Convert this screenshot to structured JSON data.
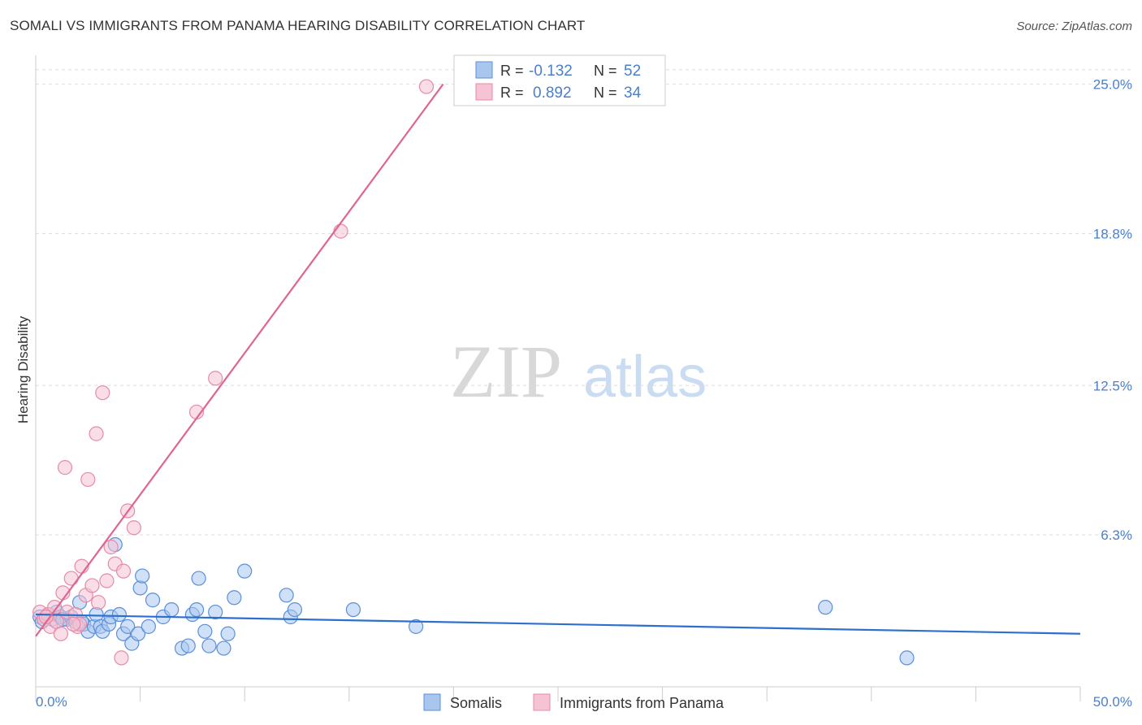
{
  "title": "SOMALI VS IMMIGRANTS FROM PANAMA HEARING DISABILITY CORRELATION CHART",
  "source": "Source: ZipAtlas.com",
  "watermark": {
    "zip": "ZIP",
    "atlas": "atlas"
  },
  "colors": {
    "somali": "#5b8fd9",
    "somali_fill": "#a9c6ef",
    "somali_line": "#2e6fce",
    "panama": "#e68aa8",
    "panama_fill": "#f6c3d4",
    "panama_line": "#e0658f",
    "axis_label": "#4a7fc9",
    "grid": "#dddddd"
  },
  "legend": {
    "rows": [
      {
        "r_label": "R = ",
        "r_value": "-0.132",
        "n_label": "N = ",
        "n_value": "52"
      },
      {
        "r_label": "R = ",
        "r_value": "0.892",
        "n_label": "N = ",
        "n_value": "34"
      }
    ]
  },
  "bottom_legend": [
    "Somalis",
    "Immigrants from Panama"
  ],
  "chart_data": {
    "type": "scatter",
    "title": "SOMALI VS IMMIGRANTS FROM PANAMA HEARING DISABILITY CORRELATION CHART",
    "xlabel": "",
    "ylabel": "Hearing Disability",
    "xlim": [
      0,
      50
    ],
    "ylim": [
      0,
      26.2
    ],
    "x_tick_labels": [
      "0.0%",
      "50.0%"
    ],
    "y_ticks": [
      6.3,
      12.5,
      18.8,
      25.0
    ],
    "y_tick_labels": [
      "6.3%",
      "12.5%",
      "18.8%",
      "25.0%"
    ],
    "grid": "horizontal dashed",
    "legend_position": "top-center",
    "series": [
      {
        "name": "Somalis",
        "r": -0.132,
        "n": 52,
        "trend": [
          [
            0,
            3.0
          ],
          [
            50,
            2.2
          ]
        ],
        "points": [
          [
            0.2,
            2.9
          ],
          [
            0.4,
            2.8
          ],
          [
            0.6,
            3.0
          ],
          [
            0.8,
            2.8
          ],
          [
            1.0,
            3.1
          ],
          [
            1.2,
            2.9
          ],
          [
            1.5,
            2.8
          ],
          [
            1.7,
            2.9
          ],
          [
            1.9,
            2.7
          ],
          [
            2.1,
            3.5
          ],
          [
            2.3,
            2.6
          ],
          [
            2.5,
            2.3
          ],
          [
            2.8,
            2.5
          ],
          [
            2.9,
            3.0
          ],
          [
            3.1,
            2.5
          ],
          [
            3.2,
            2.3
          ],
          [
            3.5,
            2.6
          ],
          [
            3.6,
            2.9
          ],
          [
            3.8,
            5.9
          ],
          [
            4.0,
            3.0
          ],
          [
            4.2,
            2.2
          ],
          [
            4.4,
            2.5
          ],
          [
            4.6,
            1.8
          ],
          [
            4.9,
            2.2
          ],
          [
            5.0,
            4.1
          ],
          [
            5.1,
            4.6
          ],
          [
            5.4,
            2.5
          ],
          [
            5.6,
            3.6
          ],
          [
            6.1,
            2.9
          ],
          [
            6.5,
            3.2
          ],
          [
            7.0,
            1.6
          ],
          [
            7.3,
            1.7
          ],
          [
            7.5,
            3.0
          ],
          [
            7.7,
            3.2
          ],
          [
            7.8,
            4.5
          ],
          [
            8.1,
            2.3
          ],
          [
            8.3,
            1.7
          ],
          [
            8.6,
            3.1
          ],
          [
            9.0,
            1.6
          ],
          [
            9.2,
            2.2
          ],
          [
            9.5,
            3.7
          ],
          [
            10.0,
            4.8
          ],
          [
            12.0,
            3.8
          ],
          [
            12.2,
            2.9
          ],
          [
            12.4,
            3.2
          ],
          [
            15.2,
            3.2
          ],
          [
            18.2,
            2.5
          ],
          [
            37.8,
            3.3
          ],
          [
            41.7,
            1.2
          ],
          [
            0.3,
            2.7
          ],
          [
            1.3,
            2.8
          ],
          [
            2.2,
            2.7
          ]
        ]
      },
      {
        "name": "Immigrants from Panama",
        "r": 0.892,
        "n": 34,
        "trend": [
          [
            0,
            2.1
          ],
          [
            19.5,
            25.0
          ]
        ],
        "points": [
          [
            0.2,
            3.1
          ],
          [
            0.4,
            2.8
          ],
          [
            0.6,
            3.0
          ],
          [
            0.7,
            2.5
          ],
          [
            0.9,
            3.3
          ],
          [
            1.0,
            2.7
          ],
          [
            1.2,
            2.2
          ],
          [
            1.3,
            3.9
          ],
          [
            1.5,
            3.1
          ],
          [
            1.4,
            9.1
          ],
          [
            1.7,
            4.5
          ],
          [
            1.9,
            3.0
          ],
          [
            2.0,
            2.5
          ],
          [
            2.1,
            2.6
          ],
          [
            2.2,
            5.0
          ],
          [
            2.4,
            3.8
          ],
          [
            2.5,
            8.6
          ],
          [
            2.7,
            4.2
          ],
          [
            2.9,
            10.5
          ],
          [
            3.0,
            3.5
          ],
          [
            3.2,
            12.2
          ],
          [
            3.4,
            4.4
          ],
          [
            3.6,
            5.8
          ],
          [
            3.8,
            5.1
          ],
          [
            4.1,
            1.2
          ],
          [
            4.2,
            4.8
          ],
          [
            4.4,
            7.3
          ],
          [
            4.7,
            6.6
          ],
          [
            7.7,
            11.4
          ],
          [
            8.6,
            12.8
          ],
          [
            14.6,
            18.9
          ],
          [
            18.7,
            24.9
          ],
          [
            0.5,
            2.9
          ],
          [
            1.8,
            2.6
          ]
        ]
      }
    ]
  }
}
